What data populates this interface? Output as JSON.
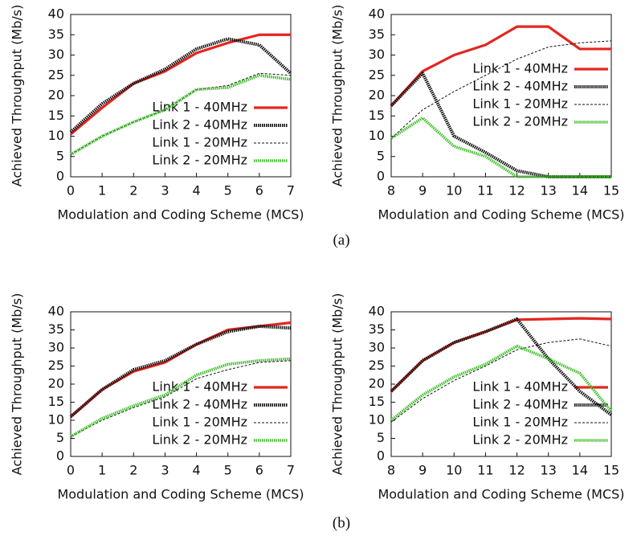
{
  "captions": [
    "(a)",
    "(b)"
  ],
  "chart_data": [
    {
      "type": "line",
      "xlabel": "Modulation and Coding Scheme (MCS)",
      "ylabel": "Achieved Throughput (Mb/s)",
      "x": [
        0,
        1,
        2,
        3,
        4,
        5,
        6,
        7
      ],
      "xlim": [
        0,
        7
      ],
      "xticks": [
        0,
        1,
        2,
        3,
        4,
        5,
        6,
        7
      ],
      "ylim": [
        0,
        40
      ],
      "yticks": [
        0,
        5,
        10,
        15,
        20,
        25,
        30,
        35,
        40
      ],
      "legend": "lower right",
      "series": [
        {
          "name": "Link 1 - 40MHz",
          "color": "#e3261f",
          "style": "solid",
          "values": [
            10.5,
            17,
            23,
            26,
            30.5,
            33,
            35,
            35
          ]
        },
        {
          "name": "Link 2 - 40MHz",
          "color": "#111111",
          "style": "dotted",
          "values": [
            11,
            18,
            23,
            26.5,
            31.5,
            34,
            32.5,
            25.5
          ]
        },
        {
          "name": "Link 1 - 20MHz",
          "color": "#111111",
          "style": "dashed",
          "values": [
            5.5,
            10,
            13.5,
            16.5,
            21.5,
            22.5,
            25.5,
            25
          ]
        },
        {
          "name": "Link 2 - 20MHz",
          "color": "#3fbf2a",
          "style": "dotted",
          "values": [
            5.5,
            10,
            13.5,
            16.5,
            21.5,
            22,
            25,
            24
          ]
        }
      ]
    },
    {
      "type": "line",
      "xlabel": "Modulation and Coding Scheme (MCS)",
      "ylabel": "Achieved Throughput (Mb/s)",
      "x": [
        8,
        9,
        10,
        11,
        12,
        13,
        14,
        15
      ],
      "xlim": [
        8,
        15
      ],
      "xticks": [
        8,
        9,
        10,
        11,
        12,
        13,
        14,
        15
      ],
      "ylim": [
        0,
        40
      ],
      "yticks": [
        0,
        5,
        10,
        15,
        20,
        25,
        30,
        35,
        40
      ],
      "legend": "center right",
      "series": [
        {
          "name": "Link 1 - 40MHz",
          "color": "#e3261f",
          "style": "solid",
          "values": [
            17.5,
            26,
            30,
            32.5,
            37,
            37,
            31.5,
            31.5
          ]
        },
        {
          "name": "Link 2 - 40MHz",
          "color": "#111111",
          "style": "dotted",
          "values": [
            17.5,
            25.5,
            10,
            6,
            1.5,
            0,
            0,
            0
          ]
        },
        {
          "name": "Link 1 - 20MHz",
          "color": "#111111",
          "style": "dashed",
          "values": [
            9.5,
            16.5,
            21,
            25,
            29,
            32,
            33,
            33.5
          ]
        },
        {
          "name": "Link 2 - 20MHz",
          "color": "#3fbf2a",
          "style": "dotted",
          "values": [
            9.5,
            14.5,
            7.5,
            5,
            0,
            0,
            0,
            0
          ]
        }
      ]
    },
    {
      "type": "line",
      "xlabel": "Modulation and Coding Scheme (MCS)",
      "ylabel": "Achieved Throughput (Mb/s)",
      "x": [
        0,
        1,
        2,
        3,
        4,
        5,
        6,
        7
      ],
      "xlim": [
        0,
        7
      ],
      "xticks": [
        0,
        1,
        2,
        3,
        4,
        5,
        6,
        7
      ],
      "ylim": [
        0,
        40
      ],
      "yticks": [
        0,
        5,
        10,
        15,
        20,
        25,
        30,
        35,
        40
      ],
      "legend": "lower right",
      "series": [
        {
          "name": "Link 1 - 40MHz",
          "color": "#e3261f",
          "style": "solid",
          "values": [
            11,
            18.5,
            23.5,
            26,
            31,
            35,
            36,
            37
          ]
        },
        {
          "name": "Link 2 - 40MHz",
          "color": "#111111",
          "style": "dotted",
          "values": [
            11,
            18.5,
            24,
            26.5,
            31,
            34.5,
            36,
            35.5
          ]
        },
        {
          "name": "Link 1 - 20MHz",
          "color": "#111111",
          "style": "dashed",
          "values": [
            5.5,
            10,
            13.5,
            16.5,
            21.5,
            24,
            26,
            26.5
          ]
        },
        {
          "name": "Link 2 - 20MHz",
          "color": "#3fbf2a",
          "style": "dotted",
          "values": [
            5.5,
            10.5,
            14,
            17,
            22.5,
            25.5,
            26.5,
            27
          ]
        }
      ]
    },
    {
      "type": "line",
      "xlabel": "Modulation and Coding Scheme (MCS)",
      "ylabel": "Achieved Throughput (Mb/s)",
      "x": [
        8,
        9,
        10,
        11,
        12,
        13,
        14,
        15
      ],
      "xlim": [
        8,
        15
      ],
      "xticks": [
        8,
        9,
        10,
        11,
        12,
        13,
        14,
        15
      ],
      "ylim": [
        0,
        40
      ],
      "yticks": [
        0,
        5,
        10,
        15,
        20,
        25,
        30,
        35,
        40
      ],
      "legend": "lower right",
      "series": [
        {
          "name": "Link 1 - 40MHz",
          "color": "#e3261f",
          "style": "solid",
          "values": [
            18,
            26.5,
            31.5,
            34.5,
            37.8,
            38,
            38.2,
            38
          ]
        },
        {
          "name": "Link 2 - 40MHz",
          "color": "#111111",
          "style": "dotted",
          "values": [
            18,
            26.5,
            31.5,
            34.5,
            38,
            27,
            18,
            11.5
          ]
        },
        {
          "name": "Link 1 - 20MHz",
          "color": "#111111",
          "style": "dashed",
          "values": [
            9.5,
            16,
            21,
            25,
            29.5,
            31.5,
            32.5,
            30.5
          ]
        },
        {
          "name": "Link 2 - 20MHz",
          "color": "#3fbf2a",
          "style": "dotted",
          "values": [
            10,
            17,
            22,
            25.5,
            30.5,
            27,
            23,
            12.5
          ]
        }
      ]
    }
  ]
}
